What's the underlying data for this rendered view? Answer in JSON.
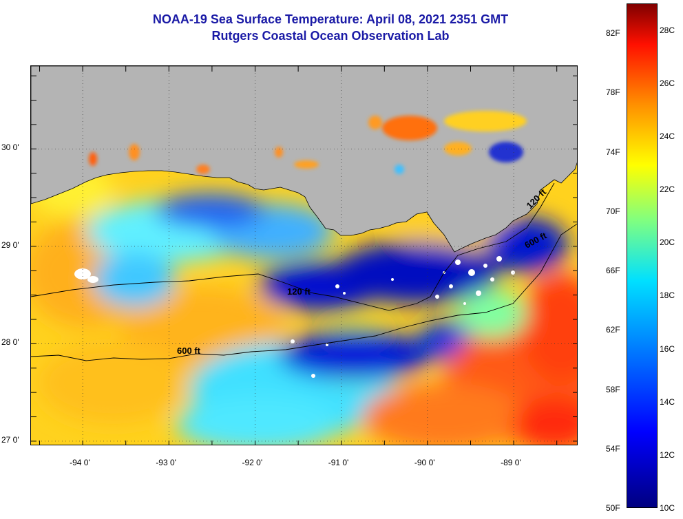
{
  "title": {
    "line1": "NOAA-19 Sea Surface Temperature:  April 08, 2021 2351 GMT",
    "line2": "Rutgers Coastal Ocean Observation Lab"
  },
  "map": {
    "lon_range": [
      -94.6,
      -88.25
    ],
    "lat_range": [
      26.95,
      30.85
    ],
    "lon_ticks": [
      {
        "value": -94,
        "label": "-94 0'"
      },
      {
        "value": -93,
        "label": "-93 0'"
      },
      {
        "value": -92,
        "label": "-92 0'"
      },
      {
        "value": -91,
        "label": "-91 0'"
      },
      {
        "value": -90,
        "label": "-90 0'"
      },
      {
        "value": -89,
        "label": "-89 0'"
      }
    ],
    "lat_ticks": [
      {
        "value": 30,
        "label": "30 0'"
      },
      {
        "value": 29,
        "label": "29 0'"
      },
      {
        "value": 28,
        "label": "28 0'"
      },
      {
        "value": 27,
        "label": "27 0'"
      }
    ],
    "land_color": "#b4b4b4",
    "grid": "dotted",
    "contour_labels": [
      {
        "text": "120 ft"
      },
      {
        "text": "600 ft"
      },
      {
        "text": "600 ft"
      },
      {
        "text": "120 ft"
      }
    ]
  },
  "colorbar": {
    "range_f": [
      50,
      84
    ],
    "range_c": [
      10,
      29
    ],
    "fahrenheit_ticks": [
      "82F",
      "78F",
      "74F",
      "70F",
      "66F",
      "62F",
      "58F",
      "54F",
      "50F"
    ],
    "celsius_ticks": [
      "28C",
      "26C",
      "24C",
      "22C",
      "20C",
      "18C",
      "16C",
      "14C",
      "12C",
      "10C"
    ],
    "colors": [
      "#000080",
      "#0000ff",
      "#0080ff",
      "#00e0ff",
      "#80ff80",
      "#ffff00",
      "#ff9000",
      "#ff1000",
      "#800000"
    ]
  }
}
